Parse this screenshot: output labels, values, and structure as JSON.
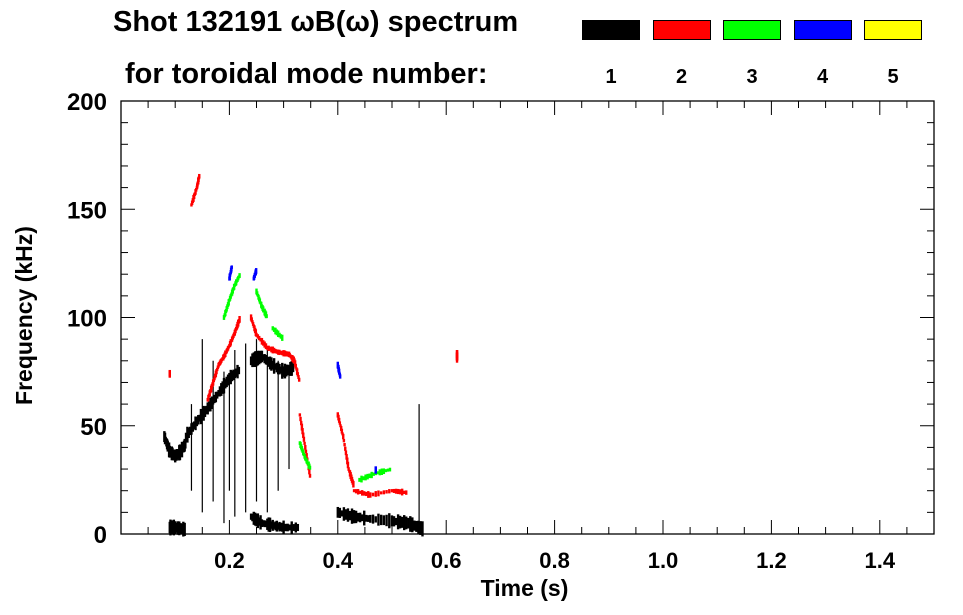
{
  "chart_data": {
    "type": "heatmap",
    "title": "Shot 132191 ωB(ω) spectrum",
    "legend_title": "for toroidal mode number:",
    "legend_placement": "top-right",
    "xlabel": "Time (s)",
    "ylabel": "Frequency (kHz)",
    "xlim": [
      0,
      1.5
    ],
    "ylim": [
      0,
      200
    ],
    "xticks": [
      "0.2",
      "0.4",
      "0.6",
      "0.8",
      "1.0",
      "1.2",
      "1.4"
    ],
    "yticks": [
      "0",
      "50",
      "100",
      "150",
      "200"
    ],
    "series": [
      {
        "name": "1",
        "color": "#000000",
        "curves": [
          [
            [
              0.08,
              45
            ],
            [
              0.09,
              38
            ],
            [
              0.1,
              36
            ],
            [
              0.11,
              38
            ],
            [
              0.12,
              42
            ]
          ],
          [
            [
              0.12,
              45
            ],
            [
              0.14,
              52
            ],
            [
              0.16,
              58
            ],
            [
              0.18,
              65
            ],
            [
              0.2,
              72
            ],
            [
              0.22,
              76
            ]
          ],
          [
            [
              0.24,
              80
            ],
            [
              0.26,
              82
            ],
            [
              0.28,
              78
            ],
            [
              0.3,
              75
            ],
            [
              0.32,
              77
            ]
          ],
          [
            [
              0.24,
              8
            ],
            [
              0.26,
              5
            ],
            [
              0.28,
              4
            ],
            [
              0.3,
              3
            ],
            [
              0.33,
              3
            ]
          ],
          [
            [
              0.4,
              10
            ],
            [
              0.43,
              8
            ],
            [
              0.46,
              7
            ],
            [
              0.5,
              6
            ],
            [
              0.53,
              5
            ],
            [
              0.56,
              2
            ]
          ],
          [
            [
              0.09,
              3
            ],
            [
              0.1,
              3
            ],
            [
              0.12,
              2
            ]
          ]
        ],
        "streaks": [
          [
            0.15,
            10,
            90
          ],
          [
            0.17,
            15,
            80
          ],
          [
            0.19,
            5,
            75
          ],
          [
            0.21,
            8,
            85
          ],
          [
            0.23,
            10,
            88
          ],
          [
            0.25,
            15,
            90
          ],
          [
            0.27,
            10,
            85
          ],
          [
            0.29,
            20,
            80
          ],
          [
            0.31,
            30,
            78
          ],
          [
            0.55,
            5,
            60
          ],
          [
            0.13,
            20,
            60
          ],
          [
            0.2,
            20,
            70
          ]
        ]
      },
      {
        "name": "2",
        "color": "#ff0000",
        "curves": [
          [
            [
              0.13,
              152
            ],
            [
              0.14,
              160
            ],
            [
              0.145,
              166
            ]
          ],
          [
            [
              0.16,
              62
            ],
            [
              0.17,
              70
            ],
            [
              0.18,
              78
            ],
            [
              0.19,
              82
            ],
            [
              0.2,
              87
            ],
            [
              0.21,
              93
            ],
            [
              0.22,
              100
            ]
          ],
          [
            [
              0.24,
              100
            ],
            [
              0.25,
              92
            ],
            [
              0.27,
              86
            ],
            [
              0.29,
              84
            ],
            [
              0.31,
              83
            ],
            [
              0.32,
              80
            ],
            [
              0.33,
              70
            ]
          ],
          [
            [
              0.33,
              55
            ],
            [
              0.34,
              40
            ],
            [
              0.35,
              25
            ]
          ],
          [
            [
              0.4,
              55
            ],
            [
              0.41,
              45
            ],
            [
              0.42,
              30
            ],
            [
              0.43,
              22
            ]
          ],
          [
            [
              0.43,
              20
            ],
            [
              0.46,
              18
            ],
            [
              0.5,
              20
            ],
            [
              0.53,
              19
            ]
          ],
          [
            [
              0.09,
              75
            ],
            [
              0.09,
              73
            ]
          ],
          [
            [
              0.62,
              84
            ],
            [
              0.62,
              80
            ]
          ]
        ]
      },
      {
        "name": "3",
        "color": "#00ff00",
        "curves": [
          [
            [
              0.19,
              100
            ],
            [
              0.2,
              108
            ],
            [
              0.21,
              115
            ],
            [
              0.22,
              120
            ]
          ],
          [
            [
              0.25,
              112
            ],
            [
              0.26,
              105
            ],
            [
              0.27,
              100
            ]
          ],
          [
            [
              0.28,
              95
            ],
            [
              0.3,
              90
            ]
          ],
          [
            [
              0.33,
              42
            ],
            [
              0.34,
              35
            ],
            [
              0.35,
              30
            ]
          ],
          [
            [
              0.44,
              25
            ],
            [
              0.47,
              28
            ],
            [
              0.5,
              30
            ]
          ]
        ]
      },
      {
        "name": "4",
        "color": "#0000ff",
        "curves": [
          [
            [
              0.2,
              118
            ],
            [
              0.205,
              124
            ]
          ],
          [
            [
              0.245,
              118
            ],
            [
              0.25,
              122
            ]
          ],
          [
            [
              0.4,
              78
            ],
            [
              0.405,
              72
            ]
          ],
          [
            [
              0.47,
              30
            ],
            [
              0.47,
              29
            ]
          ]
        ]
      },
      {
        "name": "5",
        "color": "#ffff00",
        "curves": []
      }
    ]
  }
}
